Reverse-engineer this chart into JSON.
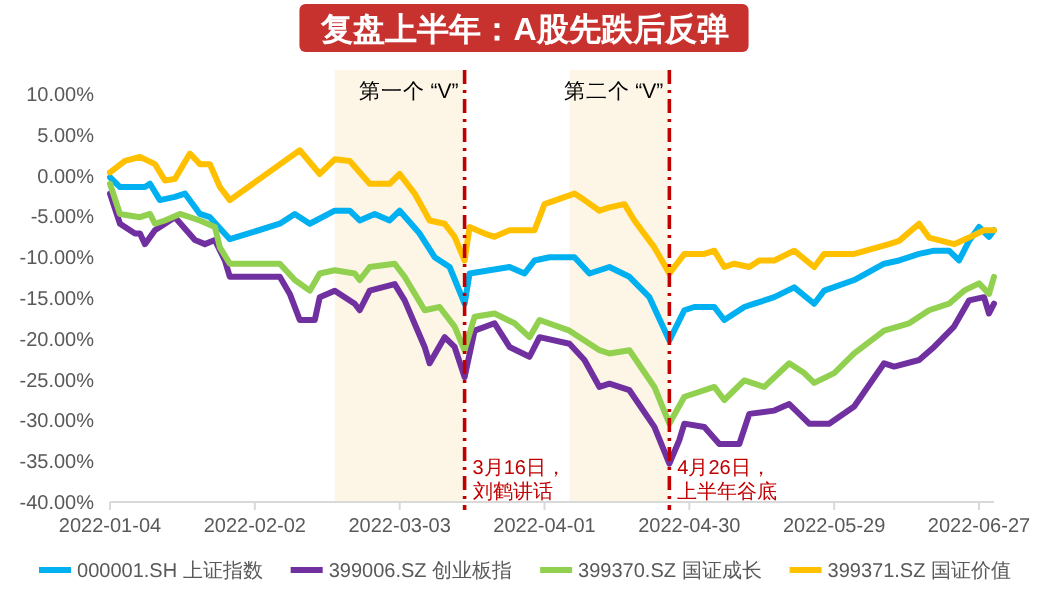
{
  "chart_data": {
    "type": "line",
    "title": "复盘上半年：A股先跌后反弹",
    "xlim": [
      "2022-01-04",
      "2022-06-30"
    ],
    "xticks": [
      "2022-01-04",
      "2022-02-02",
      "2022-03-03",
      "2022-04-01",
      "2022-04-30",
      "2022-05-29",
      "2022-06-27"
    ],
    "ylim": [
      -40,
      10
    ],
    "yticks": [
      {
        "value": -40,
        "label": "-40.00%"
      },
      {
        "value": -35,
        "label": "-35.00%"
      },
      {
        "value": -30,
        "label": "-30.00%"
      },
      {
        "value": -25,
        "label": "-25.00%"
      },
      {
        "value": -20,
        "label": "-20.00%"
      },
      {
        "value": -15,
        "label": "-15.00%"
      },
      {
        "value": -10,
        "label": "-10.00%"
      },
      {
        "value": -5,
        "label": "-5.00%"
      },
      {
        "value": 0,
        "label": "0.00%"
      },
      {
        "value": 5,
        "label": "5.00%"
      },
      {
        "value": 10,
        "label": "10.00%"
      }
    ],
    "grid": false,
    "legend": "bottom",
    "marker": "none",
    "line_style": "solid",
    "bands": [
      {
        "axis": "x",
        "from": "2022-02-18",
        "to": "2022-03-16",
        "label": "第一个 “V”",
        "color": "#fdf6e7"
      },
      {
        "axis": "x",
        "from": "2022-04-06",
        "to": "2022-04-26",
        "label": "第二个 “V”",
        "color": "#fdf6e7"
      }
    ],
    "ref_lines": [
      {
        "axis": "x",
        "value": "2022-03-16",
        "label": "3月16日，刘鹤讲话",
        "color": "#c00000",
        "line_style": "dashed"
      },
      {
        "axis": "x",
        "value": "2022-04-26",
        "label": "4月26日，上半年谷底",
        "color": "#c00000",
        "line_style": "dashed"
      }
    ],
    "series": [
      {
        "name": "000001.SH 上证指数",
        "color": "#00b0f0",
        "x": [
          "2022-01-04",
          "2022-01-06",
          "2022-01-11",
          "2022-01-12",
          "2022-01-14",
          "2022-01-17",
          "2022-01-19",
          "2022-01-22",
          "2022-01-24",
          "2022-01-28",
          "2022-02-07",
          "2022-02-10",
          "2022-02-13",
          "2022-02-18",
          "2022-02-21",
          "2022-02-23",
          "2022-02-26",
          "2022-03-01",
          "2022-03-03",
          "2022-03-07",
          "2022-03-10",
          "2022-03-13",
          "2022-03-16",
          "2022-03-17",
          "2022-03-21",
          "2022-03-25",
          "2022-03-28",
          "2022-03-30",
          "2022-04-02",
          "2022-04-07",
          "2022-04-10",
          "2022-04-14",
          "2022-04-18",
          "2022-04-22",
          "2022-04-26",
          "2022-04-29",
          "2022-05-01",
          "2022-05-05",
          "2022-05-07",
          "2022-05-11",
          "2022-05-13",
          "2022-05-17",
          "2022-05-21",
          "2022-05-25",
          "2022-05-27",
          "2022-06-02",
          "2022-06-08",
          "2022-06-11",
          "2022-06-15",
          "2022-06-18",
          "2022-06-21",
          "2022-06-23",
          "2022-06-25",
          "2022-06-27",
          "2022-06-29",
          "2022-06-30"
        ],
        "values": [
          -0.2,
          -1.4,
          -1.4,
          -1.0,
          -3.0,
          -2.6,
          -2.2,
          -4.7,
          -5.1,
          -7.8,
          -5.9,
          -4.7,
          -5.9,
          -4.3,
          -4.3,
          -5.5,
          -4.7,
          -5.5,
          -4.3,
          -7.1,
          -10.0,
          -11.2,
          -15.7,
          -12.0,
          -11.6,
          -11.2,
          -12.0,
          -10.4,
          -10.0,
          -10.0,
          -12.0,
          -11.2,
          -12.4,
          -14.9,
          -20.2,
          -16.5,
          -16.1,
          -16.1,
          -17.7,
          -16.1,
          -15.7,
          -14.9,
          -13.7,
          -15.7,
          -14.1,
          -12.8,
          -10.8,
          -10.4,
          -9.6,
          -9.2,
          -9.2,
          -10.4,
          -8.0,
          -6.3,
          -7.5,
          -6.7
        ]
      },
      {
        "name": "399006.SZ 创业板指",
        "color": "#7030a0",
        "x": [
          "2022-01-04",
          "2022-01-06",
          "2022-01-09",
          "2022-01-10",
          "2022-01-11",
          "2022-01-13",
          "2022-01-17",
          "2022-01-21",
          "2022-01-23",
          "2022-01-25",
          "2022-01-27",
          "2022-01-28",
          "2022-02-07",
          "2022-02-09",
          "2022-02-11",
          "2022-02-14",
          "2022-02-15",
          "2022-02-18",
          "2022-02-22",
          "2022-02-23",
          "2022-02-25",
          "2022-03-02",
          "2022-03-04",
          "2022-03-08",
          "2022-03-09",
          "2022-03-12",
          "2022-03-14",
          "2022-03-16",
          "2022-03-18",
          "2022-03-22",
          "2022-03-25",
          "2022-03-29",
          "2022-03-31",
          "2022-04-06",
          "2022-04-09",
          "2022-04-12",
          "2022-04-14",
          "2022-04-18",
          "2022-04-23",
          "2022-04-26",
          "2022-04-28",
          "2022-04-29",
          "2022-05-03",
          "2022-05-06",
          "2022-05-10",
          "2022-05-12",
          "2022-05-17",
          "2022-05-20",
          "2022-05-24",
          "2022-05-28",
          "2022-06-02",
          "2022-06-08",
          "2022-06-10",
          "2022-06-15",
          "2022-06-18",
          "2022-06-22",
          "2022-06-25",
          "2022-06-28",
          "2022-06-29",
          "2022-06-30"
        ],
        "values": [
          -2.2,
          -5.9,
          -7.1,
          -7.1,
          -8.4,
          -6.7,
          -5.1,
          -7.9,
          -8.4,
          -7.9,
          -10.4,
          -12.4,
          -12.4,
          -14.5,
          -17.7,
          -17.7,
          -14.9,
          -14.1,
          -15.7,
          -16.5,
          -14.1,
          -13.3,
          -15.3,
          -21.0,
          -23.0,
          -19.8,
          -21.0,
          -24.7,
          -19.0,
          -18.1,
          -21.0,
          -22.2,
          -19.8,
          -20.6,
          -22.6,
          -25.9,
          -25.5,
          -26.3,
          -30.8,
          -35.3,
          -32.4,
          -30.4,
          -30.8,
          -32.9,
          -32.9,
          -29.2,
          -28.8,
          -28.0,
          -30.4,
          -30.4,
          -28.3,
          -23.0,
          -23.4,
          -22.6,
          -21.0,
          -18.5,
          -15.3,
          -14.9,
          -16.9,
          -15.7
        ]
      },
      {
        "name": "399370.SZ 国证成长",
        "color": "#92d050",
        "x": [
          "2022-01-04",
          "2022-01-06",
          "2022-01-10",
          "2022-01-12",
          "2022-01-13",
          "2022-01-15",
          "2022-01-18",
          "2022-01-22",
          "2022-01-25",
          "2022-01-26",
          "2022-01-28",
          "2022-02-07",
          "2022-02-10",
          "2022-02-13",
          "2022-02-15",
          "2022-02-18",
          "2022-02-22",
          "2022-02-23",
          "2022-02-25",
          "2022-03-02",
          "2022-03-04",
          "2022-03-08",
          "2022-03-11",
          "2022-03-14",
          "2022-03-16",
          "2022-03-18",
          "2022-03-22",
          "2022-03-26",
          "2022-03-29",
          "2022-03-31",
          "2022-04-06",
          "2022-04-09",
          "2022-04-12",
          "2022-04-14",
          "2022-04-18",
          "2022-04-23",
          "2022-04-26",
          "2022-04-29",
          "2022-05-01",
          "2022-05-05",
          "2022-05-07",
          "2022-05-11",
          "2022-05-15",
          "2022-05-20",
          "2022-05-23",
          "2022-05-25",
          "2022-05-29",
          "2022-06-02",
          "2022-06-08",
          "2022-06-13",
          "2022-06-17",
          "2022-06-21",
          "2022-06-24",
          "2022-06-27",
          "2022-06-29",
          "2022-06-30"
        ],
        "values": [
          -1.0,
          -4.7,
          -5.1,
          -4.7,
          -5.9,
          -5.5,
          -4.7,
          -5.5,
          -6.3,
          -8.8,
          -10.8,
          -10.8,
          -12.8,
          -14.1,
          -12.0,
          -11.6,
          -12.0,
          -12.8,
          -11.2,
          -10.8,
          -12.4,
          -16.5,
          -16.1,
          -18.5,
          -21.4,
          -17.3,
          -16.9,
          -18.1,
          -19.8,
          -17.7,
          -19.0,
          -20.2,
          -21.4,
          -21.8,
          -21.4,
          -25.9,
          -30.4,
          -27.1,
          -26.7,
          -25.9,
          -27.5,
          -25.1,
          -25.9,
          -23.0,
          -24.2,
          -25.4,
          -24.2,
          -21.8,
          -19.0,
          -18.1,
          -16.5,
          -15.7,
          -14.1,
          -13.2,
          -14.5,
          -12.4
        ]
      },
      {
        "name": "399371.SZ 国证价值",
        "color": "#ffc000",
        "x": [
          "2022-01-04",
          "2022-01-07",
          "2022-01-10",
          "2022-01-13",
          "2022-01-15",
          "2022-01-17",
          "2022-01-20",
          "2022-01-22",
          "2022-01-24",
          "2022-01-26",
          "2022-01-28",
          "2022-02-08",
          "2022-02-11",
          "2022-02-15",
          "2022-02-17",
          "2022-02-18",
          "2022-02-21",
          "2022-02-25",
          "2022-03-01",
          "2022-03-03",
          "2022-03-06",
          "2022-03-09",
          "2022-03-12",
          "2022-03-14",
          "2022-03-16",
          "2022-03-17",
          "2022-03-20",
          "2022-03-22",
          "2022-03-25",
          "2022-03-30",
          "2022-04-01",
          "2022-04-07",
          "2022-04-09",
          "2022-04-12",
          "2022-04-14",
          "2022-04-17",
          "2022-04-19",
          "2022-04-23",
          "2022-04-26",
          "2022-04-29",
          "2022-05-03",
          "2022-05-05",
          "2022-05-07",
          "2022-05-09",
          "2022-05-12",
          "2022-05-14",
          "2022-05-17",
          "2022-05-21",
          "2022-05-25",
          "2022-05-27",
          "2022-06-02",
          "2022-06-09",
          "2022-06-11",
          "2022-06-15",
          "2022-06-17",
          "2022-06-22",
          "2022-06-25",
          "2022-06-28",
          "2022-06-30"
        ],
        "values": [
          0.4,
          1.8,
          2.3,
          1.4,
          -0.6,
          -0.4,
          2.7,
          1.4,
          1.4,
          -1.4,
          -3.0,
          1.8,
          3.1,
          0.2,
          1.4,
          2.0,
          1.8,
          -1.0,
          -1.0,
          0.2,
          -2.2,
          -5.5,
          -5.9,
          -7.5,
          -10.4,
          -6.3,
          -7.1,
          -7.5,
          -6.7,
          -6.7,
          -3.5,
          -2.2,
          -3.0,
          -4.3,
          -3.9,
          -3.5,
          -5.5,
          -8.8,
          -12.0,
          -9.6,
          -9.6,
          -9.2,
          -11.2,
          -10.8,
          -11.2,
          -10.4,
          -10.4,
          -9.2,
          -11.2,
          -9.6,
          -9.6,
          -8.4,
          -8.0,
          -5.9,
          -7.6,
          -8.4,
          -7.6,
          -6.7,
          -6.7
        ]
      }
    ]
  }
}
